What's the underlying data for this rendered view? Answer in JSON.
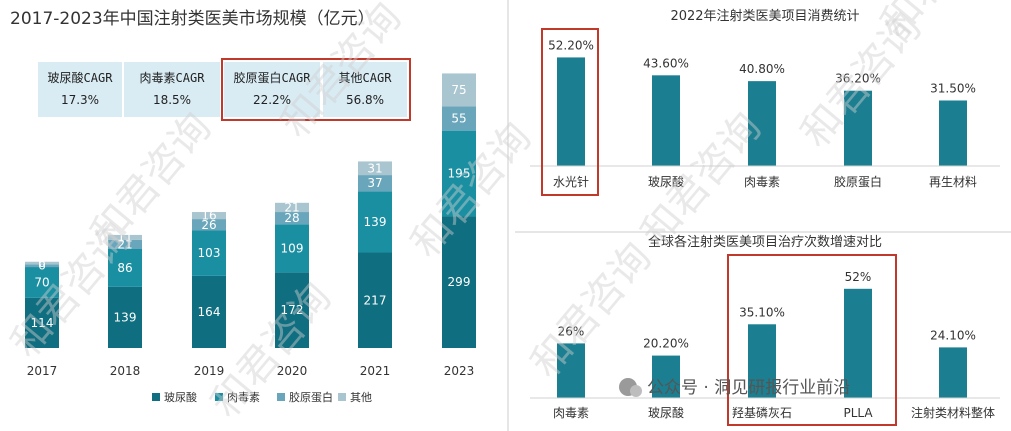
{
  "colors": {
    "bar_main": "#1b7f91",
    "s_hyaluronic": "#0f6e7f",
    "s_botox": "#1b8fa2",
    "s_collagen": "#6aa6bb",
    "s_other": "#a9c5cf",
    "cagr_box": "#d9ecf4",
    "highlight": "#c0392b",
    "divider": "#cccccc"
  },
  "watermark": "和君咨询",
  "wechat_caption": "公众号 · 洞见研报行业前沿",
  "wechat_icon": "wechat-icon",
  "chart_data": [
    {
      "type": "bar",
      "stacked": true,
      "title": "2017-2023年中国注射类医美市场规模（亿元）",
      "categories": [
        "2017",
        "2018",
        "2019",
        "2020",
        "2021",
        "2023"
      ],
      "series": [
        {
          "name": "玻尿酸",
          "values": [
            114,
            139,
            164,
            172,
            217,
            299
          ]
        },
        {
          "name": "肉毒素",
          "values": [
            70,
            86,
            103,
            109,
            139,
            195
          ]
        },
        {
          "name": "胶原蛋白",
          "values": [
            6,
            21,
            26,
            28,
            37,
            55
          ]
        },
        {
          "name": "其他",
          "values": [
            6,
            11,
            16,
            21,
            31,
            75
          ]
        }
      ],
      "cagr": [
        {
          "name": "玻尿酸CAGR",
          "value": "17.3%"
        },
        {
          "name": "肉毒素CAGR",
          "value": "18.5%"
        },
        {
          "name": "胶原蛋白CAGR",
          "value": "22.2%"
        },
        {
          "name": "其他CAGR",
          "value": "56.8%"
        }
      ],
      "legend_position": "bottom"
    },
    {
      "type": "bar",
      "title": "2022年注射类医美项目消费统计",
      "categories": [
        "水光针",
        "玻尿酸",
        "肉毒素",
        "胶原蛋白",
        "再生材料"
      ],
      "values": [
        52.2,
        43.6,
        40.8,
        36.2,
        31.5
      ],
      "value_labels": [
        "52.20%",
        "43.60%",
        "40.80%",
        "36.20%",
        "31.50%"
      ],
      "highlighted": [
        "水光针"
      ]
    },
    {
      "type": "bar",
      "title": "全球各注射类医美项目治疗次数增速对比",
      "categories": [
        "肉毒素",
        "玻尿酸",
        "羟基磷灰石",
        "PLLA",
        "注射类材料整体"
      ],
      "values": [
        26,
        20.2,
        35.1,
        52,
        24.1
      ],
      "value_labels": [
        "26%",
        "20.20%",
        "35.10%",
        "52%",
        "24.10%"
      ],
      "highlighted": [
        "羟基磷灰石",
        "PLLA"
      ]
    }
  ]
}
